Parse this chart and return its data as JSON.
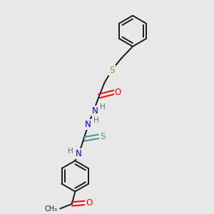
{
  "background_color": "#e8e8e8",
  "bond_color": "#1a1a1a",
  "colors": {
    "O": "#ff0000",
    "N": "#0000cd",
    "S_benzyl": "#b8860b",
    "S_thioamide": "#4a9090",
    "H": "#6a6a6a",
    "C": "#1a1a1a"
  },
  "figsize": [
    3.0,
    3.0
  ],
  "dpi": 100,
  "xlim": [
    0,
    10
  ],
  "ylim": [
    0,
    10
  ]
}
